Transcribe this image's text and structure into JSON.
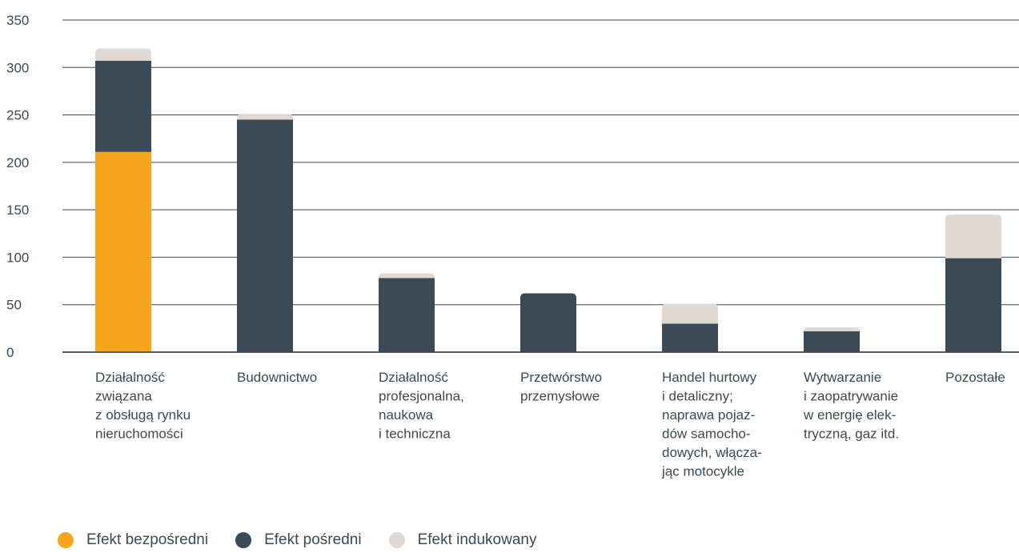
{
  "chart_data": {
    "type": "bar",
    "stacked": true,
    "ylim": [
      0,
      350
    ],
    "yticks": [
      0,
      50,
      100,
      150,
      200,
      250,
      300,
      350
    ],
    "grid": true,
    "legend_position": "bottom-left",
    "categories": [
      [
        "Działalność",
        "związana",
        "z obsługą rynku",
        "nieruchomości"
      ],
      [
        "Budownictwo"
      ],
      [
        "Działalność",
        "profesjonalna,",
        "naukowa",
        "i techniczna"
      ],
      [
        "Przetwórstwo",
        "przemysłowe"
      ],
      [
        "Handel hurtowy",
        "i detaliczny;",
        "naprawa pojaz-",
        "dów samocho-",
        "dowych, włącza-",
        "jąc motocykle"
      ],
      [
        "Wytwarzanie",
        "i zaopatrywanie",
        "w energię elek-",
        "tryczną, gaz itd."
      ],
      [
        "Pozostałe"
      ]
    ],
    "series": [
      {
        "name": "Efekt bezpośredni",
        "color": "#f7a51c",
        "values": [
          211,
          0,
          0,
          0,
          0,
          0,
          0
        ]
      },
      {
        "name": "Efekt pośredni",
        "color": "#3c4a55",
        "values": [
          96,
          245,
          78,
          62,
          30,
          22,
          99
        ]
      },
      {
        "name": "Efekt indukowany",
        "color": "#e0d8d3",
        "values": [
          13,
          6,
          5,
          0,
          21,
          4,
          46
        ]
      }
    ]
  }
}
